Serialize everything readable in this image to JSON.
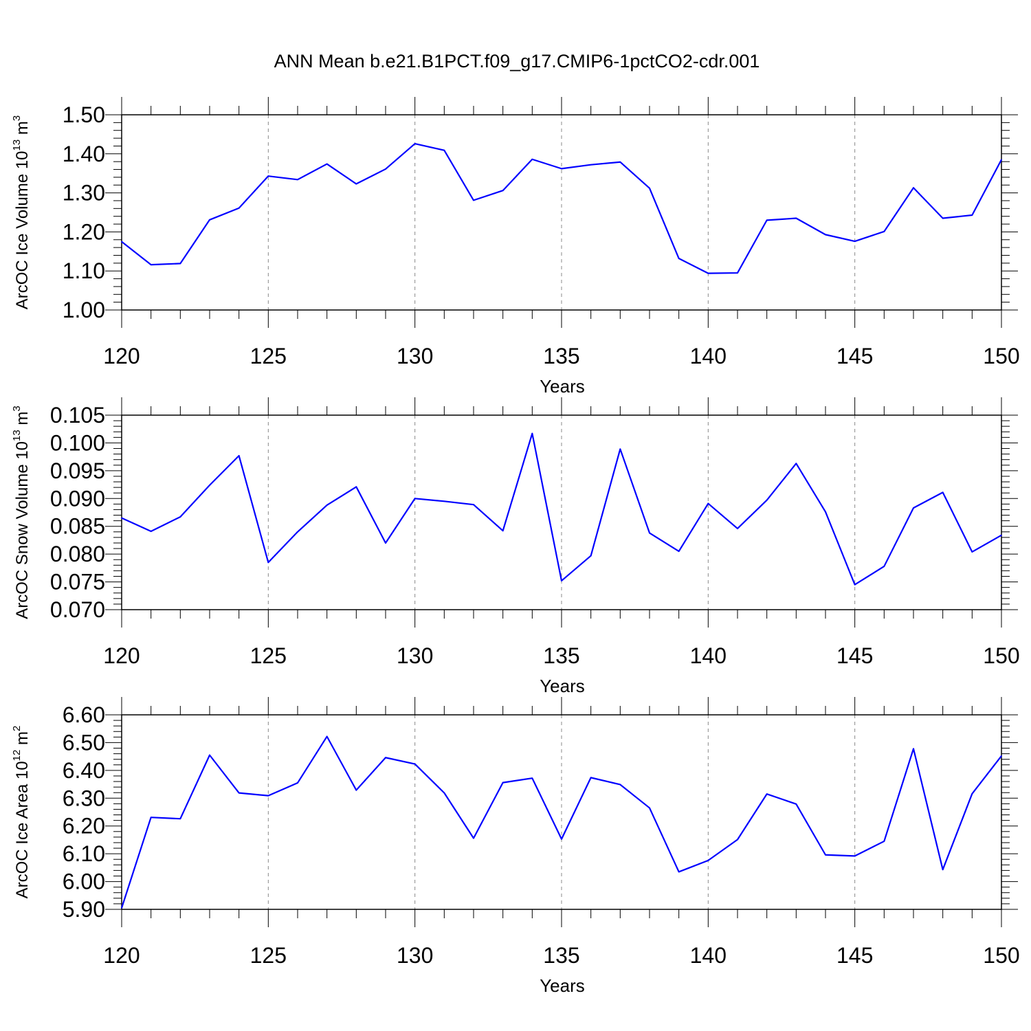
{
  "title": "ANN Mean b.e21.B1PCT.f09_g17.CMIP6-1pctCO2-cdr.001",
  "colors": {
    "series": "#0000ff",
    "axis": "#000000",
    "grid": "#888888"
  },
  "chart_data": [
    {
      "type": "line",
      "xlabel": "Years",
      "ylabel_main": "ArcOC Ice Volume 10",
      "ylabel_exp": "13",
      "ylabel_unit": " m",
      "ylabel_unit_exp": "3",
      "xlim": [
        120,
        150
      ],
      "ylim": [
        1.0,
        1.5
      ],
      "xticks": [
        120,
        125,
        130,
        135,
        140,
        145,
        150
      ],
      "xtick_labels": [
        "120",
        "125",
        "130",
        "135",
        "140",
        "145",
        "150"
      ],
      "yticks": [
        1.0,
        1.1,
        1.2,
        1.3,
        1.4,
        1.5
      ],
      "ytick_labels": [
        "1.00",
        "1.10",
        "1.20",
        "1.30",
        "1.40",
        "1.50"
      ],
      "x": [
        120,
        121,
        122,
        123,
        124,
        125,
        126,
        127,
        128,
        129,
        130,
        131,
        132,
        133,
        134,
        135,
        136,
        137,
        138,
        139,
        140,
        141,
        142,
        143,
        144,
        145,
        146,
        147,
        148,
        149,
        150
      ],
      "y": [
        1.175,
        1.116,
        1.119,
        1.231,
        1.261,
        1.343,
        1.334,
        1.374,
        1.323,
        1.361,
        1.426,
        1.409,
        1.281,
        1.306,
        1.386,
        1.362,
        1.372,
        1.379,
        1.312,
        1.132,
        1.094,
        1.095,
        1.23,
        1.235,
        1.193,
        1.176,
        1.201,
        1.313,
        1.235,
        1.243,
        1.385
      ],
      "grid": "vertical dashed at major x ticks"
    },
    {
      "type": "line",
      "xlabel": "Years",
      "ylabel_main": "ArcOC Snow Volume 10",
      "ylabel_exp": "13",
      "ylabel_unit": " m",
      "ylabel_unit_exp": "3",
      "xlim": [
        120,
        150
      ],
      "ylim": [
        0.07,
        0.105
      ],
      "xticks": [
        120,
        125,
        130,
        135,
        140,
        145,
        150
      ],
      "xtick_labels": [
        "120",
        "125",
        "130",
        "135",
        "140",
        "145",
        "150"
      ],
      "yticks": [
        0.07,
        0.075,
        0.08,
        0.085,
        0.09,
        0.095,
        0.1,
        0.105
      ],
      "ytick_labels": [
        "0.070",
        "0.075",
        "0.080",
        "0.085",
        "0.090",
        "0.095",
        "0.100",
        "0.105"
      ],
      "x": [
        120,
        121,
        122,
        123,
        124,
        125,
        126,
        127,
        128,
        129,
        130,
        131,
        132,
        133,
        134,
        135,
        136,
        137,
        138,
        139,
        140,
        141,
        142,
        143,
        144,
        145,
        146,
        147,
        148,
        149,
        150
      ],
      "y": [
        0.0865,
        0.0841,
        0.0867,
        0.0924,
        0.0977,
        0.0785,
        0.084,
        0.0888,
        0.0921,
        0.082,
        0.09,
        0.0895,
        0.0889,
        0.0842,
        0.1017,
        0.0752,
        0.0797,
        0.0989,
        0.0838,
        0.0805,
        0.0891,
        0.0846,
        0.0897,
        0.0963,
        0.0876,
        0.0745,
        0.0778,
        0.0883,
        0.0911,
        0.0804,
        0.0834
      ],
      "grid": "vertical dashed at major x ticks"
    },
    {
      "type": "line",
      "xlabel": "Years",
      "ylabel_main": "ArcOC Ice Area 10",
      "ylabel_exp": "12",
      "ylabel_unit": " m",
      "ylabel_unit_exp": "2",
      "xlim": [
        120,
        150
      ],
      "ylim": [
        5.9,
        6.6
      ],
      "xticks": [
        120,
        125,
        130,
        135,
        140,
        145,
        150
      ],
      "xtick_labels": [
        "120",
        "125",
        "130",
        "135",
        "140",
        "145",
        "150"
      ],
      "yticks": [
        5.9,
        6.0,
        6.1,
        6.2,
        6.3,
        6.4,
        6.5,
        6.6
      ],
      "ytick_labels": [
        "5.90",
        "6.00",
        "6.10",
        "6.20",
        "6.30",
        "6.40",
        "6.50",
        "6.60"
      ],
      "x": [
        120,
        121,
        122,
        123,
        124,
        125,
        126,
        127,
        128,
        129,
        130,
        131,
        132,
        133,
        134,
        135,
        136,
        137,
        138,
        139,
        140,
        141,
        142,
        143,
        144,
        145,
        146,
        147,
        148,
        149,
        150
      ],
      "y": [
        5.905,
        6.231,
        6.226,
        6.455,
        6.319,
        6.309,
        6.355,
        6.522,
        6.329,
        6.446,
        6.423,
        6.319,
        6.156,
        6.356,
        6.372,
        6.153,
        6.374,
        6.349,
        6.265,
        6.035,
        6.076,
        6.151,
        6.315,
        6.279,
        6.096,
        6.092,
        6.145,
        6.478,
        6.043,
        6.316,
        6.452
      ],
      "grid": "vertical dashed at major x ticks"
    }
  ]
}
